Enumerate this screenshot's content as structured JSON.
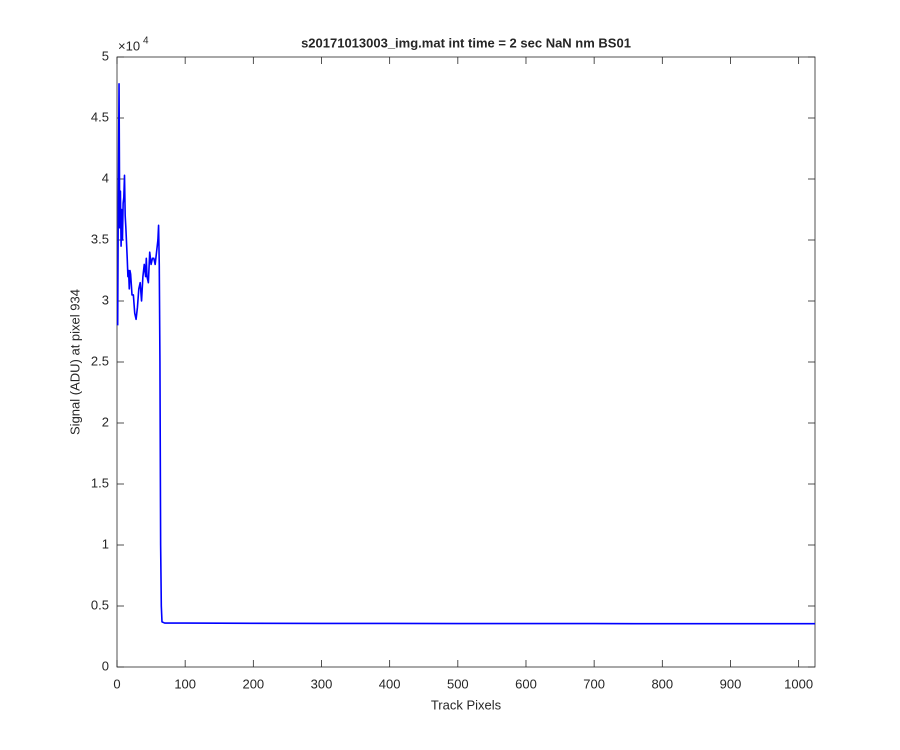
{
  "chart_data": {
    "type": "line",
    "title": "s20171013003_img.mat int time = 2 sec  NaN nm BS01",
    "x_label": "Track Pixels",
    "y_label": "Signal (ADU) at pixel 934",
    "y_multiplier": "×10",
    "y_multiplier_exponent": "4",
    "color": "#0000ff",
    "x": [
      1,
      2,
      3,
      4,
      5,
      6,
      7,
      8,
      9,
      10,
      11,
      12,
      13,
      15,
      16,
      17,
      18,
      19,
      20,
      22,
      24,
      26,
      28,
      30,
      32,
      34,
      36,
      38,
      40,
      42,
      43,
      44,
      46,
      48,
      50,
      52,
      54,
      56,
      58,
      60,
      61,
      62,
      63,
      64,
      65,
      66,
      70,
      100,
      200,
      300,
      400,
      500,
      600,
      700,
      800,
      900,
      1000,
      1024
    ],
    "values": [
      2.8,
      3.9,
      4.78,
      3.6,
      3.9,
      3.45,
      3.75,
      3.5,
      3.8,
      3.85,
      4.03,
      3.7,
      3.6,
      3.35,
      3.2,
      3.25,
      3.1,
      3.25,
      3.22,
      3.05,
      3.05,
      2.9,
      2.85,
      2.95,
      3.1,
      3.15,
      3.0,
      3.2,
      3.3,
      3.2,
      3.35,
      3.2,
      3.15,
      3.4,
      3.3,
      3.35,
      3.35,
      3.3,
      3.4,
      3.5,
      3.62,
      3.3,
      2.5,
      1.0,
      0.5,
      0.37,
      0.36,
      0.36,
      0.358,
      0.357,
      0.357,
      0.356,
      0.356,
      0.356,
      0.355,
      0.355,
      0.355,
      0.355
    ],
    "xlim": [
      0,
      1024
    ],
    "xticks": [
      0,
      100,
      200,
      300,
      400,
      500,
      600,
      700,
      800,
      900,
      1000
    ],
    "ylim": [
      0,
      5
    ],
    "yticks": [
      0,
      0.5,
      1,
      1.5,
      2,
      2.5,
      3,
      3.5,
      4,
      4.5,
      5
    ]
  }
}
